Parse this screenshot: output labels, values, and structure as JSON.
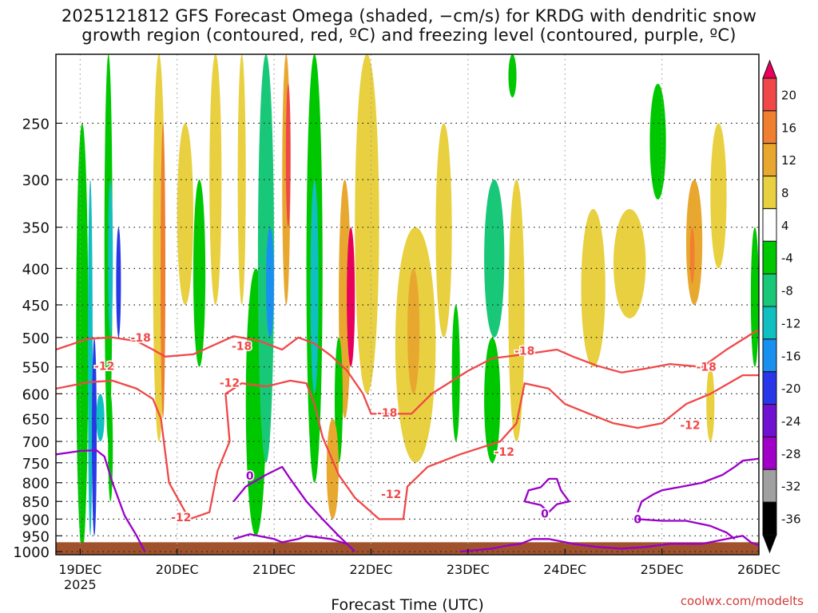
{
  "chart_data": {
    "type": "heatmap",
    "title_line1": "2025121812 GFS Forecast Omega (shaded, −cm/s) for KRDG with dendritic snow",
    "title_line2": "growth region (contoured, red, ºC) and freezing level (contoured, purple, ºC)",
    "xlabel": "Forecast Time (UTC)",
    "credit": "coolwx.com/modelts",
    "x_ticks": [
      {
        "time": 6,
        "label": "19DEC",
        "sublabel": "2025"
      },
      {
        "time": 30,
        "label": "20DEC",
        "sublabel": ""
      },
      {
        "time": 54,
        "label": "21DEC",
        "sublabel": ""
      },
      {
        "time": 78,
        "label": "22DEC",
        "sublabel": ""
      },
      {
        "time": 102,
        "label": "23DEC",
        "sublabel": ""
      },
      {
        "time": 126,
        "label": "24DEC",
        "sublabel": ""
      },
      {
        "time": 150,
        "label": "25DEC",
        "sublabel": ""
      },
      {
        "time": 174,
        "label": "26DEC",
        "sublabel": ""
      }
    ],
    "xlim": [
      0,
      174
    ],
    "y_ticks": [
      250,
      300,
      350,
      400,
      450,
      500,
      550,
      600,
      650,
      700,
      750,
      800,
      850,
      900,
      950,
      1000
    ],
    "ylim": [
      200,
      1010
    ],
    "colorbar": {
      "labels": [
        "20",
        "16",
        "12",
        "8",
        "4",
        "-4",
        "-8",
        "-12",
        "-16",
        "-20",
        "-24",
        "-28",
        "-32",
        "-36"
      ],
      "bins": [
        {
          "range": ">20",
          "color": "#e8005a"
        },
        {
          "range": "16 to 20",
          "color": "#f04848"
        },
        {
          "range": "12 to 16",
          "color": "#f08030"
        },
        {
          "range": "8 to 12",
          "color": "#e8a830"
        },
        {
          "range": "4 to 8",
          "color": "#e8d040"
        },
        {
          "range": "-4 to 4",
          "color": "#ffffff"
        },
        {
          "range": "-8 to -4",
          "color": "#00c800"
        },
        {
          "range": "-12 to -8",
          "color": "#18c878"
        },
        {
          "range": "-16 to -12",
          "color": "#10c0c0"
        },
        {
          "range": "-20 to -16",
          "color": "#1890f0"
        },
        {
          "range": "-24 to -20",
          "color": "#2838e8"
        },
        {
          "range": "-28 to -24",
          "color": "#7010d0"
        },
        {
          "range": "-32 to -28",
          "color": "#a000c8"
        },
        {
          "range": "-36 to -32",
          "color": "#a0a0a0"
        },
        {
          "range": "<-36",
          "color": "#000000"
        }
      ]
    },
    "omega_features": [
      {
        "t0": 5,
        "t1": 8,
        "p0": 250,
        "p1": 1000,
        "value": -8
      },
      {
        "t0": 8,
        "t1": 9,
        "p0": 300,
        "p1": 950,
        "value": -16
      },
      {
        "t0": 9,
        "t1": 10,
        "p0": 500,
        "p1": 950,
        "value": -24
      },
      {
        "t0": 12,
        "t1": 14,
        "p0": 200,
        "p1": 700,
        "value": -8
      },
      {
        "t0": 13,
        "t1": 14,
        "p0": 300,
        "p1": 500,
        "value": -16
      },
      {
        "t0": 15,
        "t1": 16,
        "p0": 350,
        "p1": 500,
        "value": -24
      },
      {
        "t0": 10,
        "t1": 12,
        "p0": 600,
        "p1": 700,
        "value": -16
      },
      {
        "t0": 13,
        "t1": 14,
        "p0": 600,
        "p1": 850,
        "value": -8
      },
      {
        "t0": 24,
        "t1": 27,
        "p0": 200,
        "p1": 700,
        "value": 8
      },
      {
        "t0": 26,
        "t1": 27,
        "p0": 250,
        "p1": 650,
        "value": 14
      },
      {
        "t0": 30,
        "t1": 34,
        "p0": 250,
        "p1": 450,
        "value": 8
      },
      {
        "t0": 34,
        "t1": 37,
        "p0": 300,
        "p1": 550,
        "value": -6
      },
      {
        "t0": 38,
        "t1": 41,
        "p0": 200,
        "p1": 450,
        "value": 5
      },
      {
        "t0": 45,
        "t1": 47,
        "p0": 200,
        "p1": 450,
        "value": 5
      },
      {
        "t0": 47,
        "t1": 52,
        "p0": 400,
        "p1": 950,
        "value": -8
      },
      {
        "t0": 50,
        "t1": 54,
        "p0": 200,
        "p1": 750,
        "value": -10
      },
      {
        "t0": 52,
        "t1": 54,
        "p0": 350,
        "p1": 500,
        "value": -18
      },
      {
        "t0": 56,
        "t1": 58,
        "p0": 200,
        "p1": 450,
        "value": 12
      },
      {
        "t0": 57,
        "t1": 58,
        "p0": 220,
        "p1": 350,
        "value": 18
      },
      {
        "t0": 62,
        "t1": 66,
        "p0": 200,
        "p1": 800,
        "value": -8
      },
      {
        "t0": 63,
        "t1": 65,
        "p0": 300,
        "p1": 600,
        "value": -14
      },
      {
        "t0": 70,
        "t1": 73,
        "p0": 300,
        "p1": 650,
        "value": 12
      },
      {
        "t0": 72,
        "t1": 74,
        "p0": 350,
        "p1": 550,
        "value": 22
      },
      {
        "t0": 69,
        "t1": 71,
        "p0": 500,
        "p1": 750,
        "value": -8
      },
      {
        "t0": 67,
        "t1": 70,
        "p0": 650,
        "p1": 900,
        "value": 10
      },
      {
        "t0": 74,
        "t1": 80,
        "p0": 200,
        "p1": 600,
        "value": 6
      },
      {
        "t0": 84,
        "t1": 94,
        "p0": 350,
        "p1": 750,
        "value": 6
      },
      {
        "t0": 87,
        "t1": 90,
        "p0": 400,
        "p1": 600,
        "value": 10
      },
      {
        "t0": 94,
        "t1": 98,
        "p0": 250,
        "p1": 500,
        "value": 5
      },
      {
        "t0": 98,
        "t1": 100,
        "p0": 450,
        "p1": 700,
        "value": -6
      },
      {
        "t0": 106,
        "t1": 111,
        "p0": 300,
        "p1": 500,
        "value": -12
      },
      {
        "t0": 106,
        "t1": 110,
        "p0": 500,
        "p1": 750,
        "value": -6
      },
      {
        "t0": 112,
        "t1": 114,
        "p0": 200,
        "p1": 230,
        "value": -6
      },
      {
        "t0": 112,
        "t1": 116,
        "p0": 300,
        "p1": 700,
        "value": 5
      },
      {
        "t0": 130,
        "t1": 136,
        "p0": 330,
        "p1": 550,
        "value": 5
      },
      {
        "t0": 138,
        "t1": 146,
        "p0": 330,
        "p1": 470,
        "value": 5
      },
      {
        "t0": 147,
        "t1": 151,
        "p0": 220,
        "p1": 320,
        "value": -6
      },
      {
        "t0": 156,
        "t1": 160,
        "p0": 300,
        "p1": 450,
        "value": 10
      },
      {
        "t0": 157,
        "t1": 158,
        "p0": 350,
        "p1": 420,
        "value": 14
      },
      {
        "t0": 162,
        "t1": 166,
        "p0": 250,
        "p1": 400,
        "value": 6
      },
      {
        "t0": 161,
        "t1": 163,
        "p0": 550,
        "p1": 700,
        "value": 6
      },
      {
        "t0": 172,
        "t1": 174,
        "p0": 350,
        "p1": 550,
        "value": -8
      }
    ],
    "terrain": {
      "color": "#a0522d",
      "pressure_top": 970
    },
    "contours": [
      {
        "level": -18,
        "color": "#f04848",
        "points": [
          [
            0,
            520
          ],
          [
            8,
            502
          ],
          [
            14,
            500
          ],
          [
            20,
            506
          ],
          [
            24,
            520
          ],
          [
            27,
            532
          ],
          [
            34,
            528
          ],
          [
            44,
            498
          ],
          [
            50,
            505
          ],
          [
            56,
            520
          ],
          [
            60,
            500
          ],
          [
            64,
            510
          ],
          [
            68,
            530
          ],
          [
            72,
            556
          ],
          [
            76,
            600
          ],
          [
            78,
            640
          ],
          [
            88,
            640
          ],
          [
            93,
            600
          ],
          [
            102,
            557
          ],
          [
            108,
            535
          ],
          [
            116,
            528
          ],
          [
            124,
            520
          ],
          [
            128,
            532
          ],
          [
            134,
            548
          ],
          [
            140,
            560
          ],
          [
            146,
            553
          ],
          [
            152,
            545
          ],
          [
            160,
            550
          ],
          [
            166,
            520
          ],
          [
            172,
            495
          ],
          [
            174,
            488
          ]
        ],
        "labels": [
          [
            21,
            500,
            "-18"
          ],
          [
            46,
            514,
            "-18"
          ],
          [
            82,
            638,
            "-18"
          ],
          [
            116,
            522,
            "-18"
          ],
          [
            161,
            550,
            "-18"
          ]
        ]
      },
      {
        "level": -12,
        "color": "#f04848",
        "points": [
          [
            0,
            590
          ],
          [
            8,
            578
          ],
          [
            14,
            575
          ],
          [
            20,
            590
          ],
          [
            24,
            610
          ],
          [
            26,
            650
          ],
          [
            28,
            800
          ],
          [
            33,
            900
          ],
          [
            38,
            880
          ],
          [
            40,
            770
          ],
          [
            43,
            700
          ],
          [
            42,
            600
          ],
          [
            46,
            580
          ],
          [
            52,
            586
          ],
          [
            58,
            575
          ],
          [
            62,
            580
          ],
          [
            64,
            620
          ],
          [
            66,
            690
          ],
          [
            70,
            780
          ],
          [
            74,
            840
          ],
          [
            80,
            900
          ],
          [
            86,
            900
          ],
          [
            87,
            810
          ],
          [
            92,
            760
          ],
          [
            100,
            730
          ],
          [
            110,
            700
          ],
          [
            114,
            660
          ],
          [
            116,
            580
          ],
          [
            122,
            590
          ],
          [
            126,
            620
          ],
          [
            132,
            640
          ],
          [
            138,
            660
          ],
          [
            144,
            670
          ],
          [
            150,
            660
          ],
          [
            156,
            620
          ],
          [
            162,
            600
          ],
          [
            170,
            565
          ],
          [
            174,
            565
          ]
        ],
        "labels": [
          [
            12,
            548,
            "-12"
          ],
          [
            43,
            579,
            "-12"
          ],
          [
            83,
            830,
            "-12"
          ],
          [
            111,
            724,
            "-12"
          ],
          [
            157,
            664,
            "-12"
          ],
          [
            31,
            895,
            "-12"
          ]
        ]
      },
      {
        "level": 0,
        "color": "#9a00c8",
        "points": [
          [
            0,
            730
          ],
          [
            6,
            722
          ],
          [
            10,
            720
          ],
          [
            12,
            735
          ],
          [
            14,
            800
          ],
          [
            17,
            890
          ],
          [
            20,
            950
          ],
          [
            22,
            1000
          ]
        ],
        "labels": []
      },
      {
        "level": 0,
        "color": "#9a00c8",
        "points": [
          [
            44,
            960
          ],
          [
            48,
            945
          ],
          [
            54,
            960
          ],
          [
            56,
            970
          ],
          [
            60,
            960
          ],
          [
            62,
            950
          ],
          [
            68,
            960
          ],
          [
            72,
            975
          ]
        ],
        "labels": []
      },
      {
        "level": 0,
        "color": "#9a00c8",
        "points": [
          [
            44,
            850
          ],
          [
            47,
            810
          ],
          [
            52,
            780
          ],
          [
            56,
            760
          ],
          [
            58,
            790
          ],
          [
            62,
            850
          ],
          [
            66,
            900
          ],
          [
            70,
            950
          ],
          [
            74,
            1000
          ]
        ],
        "labels": [
          [
            48,
            782,
            "0"
          ]
        ]
      },
      {
        "level": 0,
        "color": "#9a00c8",
        "points": [
          [
            116,
            850
          ],
          [
            117,
            820
          ],
          [
            120,
            812
          ],
          [
            122,
            790
          ],
          [
            124,
            790
          ],
          [
            125,
            820
          ],
          [
            127,
            850
          ],
          [
            124,
            858
          ],
          [
            122,
            880
          ],
          [
            120,
            860
          ],
          [
            118,
            855
          ],
          [
            116,
            850
          ]
        ],
        "labels": [
          [
            121,
            884,
            "0"
          ]
        ]
      },
      {
        "level": 0,
        "color": "#9a00c8",
        "points": [
          [
            100,
            1000
          ],
          [
            108,
            990
          ],
          [
            112,
            980
          ],
          [
            115,
            975
          ],
          [
            118,
            960
          ],
          [
            122,
            960
          ],
          [
            128,
            975
          ],
          [
            134,
            985
          ],
          [
            140,
            990
          ],
          [
            146,
            985
          ],
          [
            152,
            975
          ],
          [
            160,
            975
          ],
          [
            166,
            960
          ],
          [
            170,
            950
          ],
          [
            172,
            970
          ],
          [
            174,
            980
          ]
        ],
        "labels": []
      },
      {
        "level": 0,
        "color": "#9a00c8",
        "points": [
          [
            144,
            880
          ],
          [
            145,
            850
          ],
          [
            148,
            830
          ],
          [
            150,
            820
          ],
          [
            155,
            810
          ],
          [
            160,
            800
          ],
          [
            165,
            780
          ],
          [
            168,
            760
          ],
          [
            170,
            745
          ],
          [
            174,
            740
          ]
        ],
        "labels": [
          [
            144,
            900,
            "0"
          ]
        ]
      },
      {
        "level": 0,
        "color": "#9a00c8",
        "points": [
          [
            144,
            900
          ],
          [
            150,
            905
          ],
          [
            156,
            905
          ],
          [
            162,
            920
          ],
          [
            166,
            940
          ],
          [
            168,
            960
          ]
        ],
        "labels": []
      }
    ]
  }
}
